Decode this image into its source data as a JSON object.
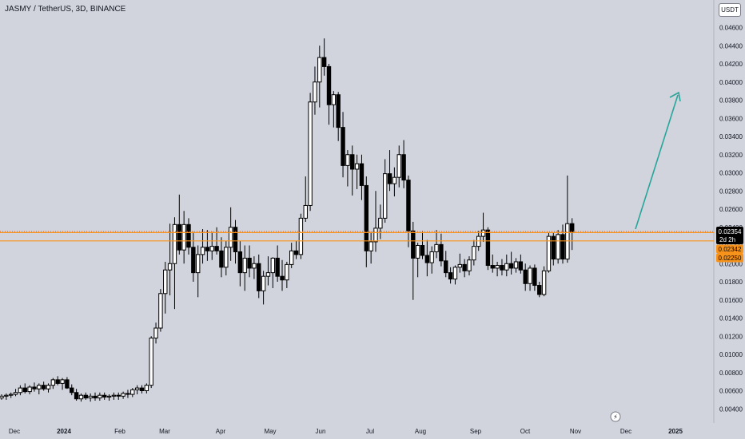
{
  "title": "JASMY / TetherUS, 3D, BINANCE",
  "currency": "USDT",
  "colors": {
    "background": "#d1d4dc",
    "candle": "#000000",
    "level_line": "#f7931a",
    "arrow": "#26a69a",
    "text": "#131722"
  },
  "icons": {
    "lightning": "lightning-icon"
  },
  "price_tags": {
    "last": {
      "value": 0.02354,
      "label": "0.02354",
      "countdown": "2d 2h"
    },
    "upper_level": {
      "value": 0.02342,
      "label": "0.02342"
    },
    "lower_level": {
      "value": 0.0225,
      "label": "0.02250"
    }
  },
  "chart_data": {
    "type": "candlestick",
    "title": "JASMY / TetherUS, 3D, BINANCE",
    "ylim": [
      0.0035,
      0.0475
    ],
    "y_ticks": [
      "0.04600",
      "0.04400",
      "0.04200",
      "0.04000",
      "0.03800",
      "0.03600",
      "0.03400",
      "0.03200",
      "0.03000",
      "0.02800",
      "0.02600",
      "0.02400",
      "0.02200",
      "0.02000",
      "0.01800",
      "0.01600",
      "0.01400",
      "0.01200",
      "0.01000",
      "0.00800",
      "0.00600",
      "0.00400"
    ],
    "x_ticks": [
      {
        "label": "Dec",
        "bold": false
      },
      {
        "label": "2024",
        "bold": true
      },
      {
        "label": "Feb",
        "bold": false
      },
      {
        "label": "Mar",
        "bold": false
      },
      {
        "label": "Apr",
        "bold": false
      },
      {
        "label": "May",
        "bold": false
      },
      {
        "label": "Jun",
        "bold": false
      },
      {
        "label": "Jul",
        "bold": false
      },
      {
        "label": "Aug",
        "bold": false
      },
      {
        "label": "Sep",
        "bold": false
      },
      {
        "label": "Oct",
        "bold": false
      },
      {
        "label": "Nov",
        "bold": false
      },
      {
        "label": "Dec",
        "bold": false
      },
      {
        "label": "2025",
        "bold": true
      }
    ],
    "levels": [
      0.02342,
      0.0225
    ],
    "ohlc": [
      [
        0.0052,
        0.0056,
        0.005,
        0.0054
      ],
      [
        0.0054,
        0.0057,
        0.005,
        0.0055
      ],
      [
        0.0055,
        0.0058,
        0.0052,
        0.0056
      ],
      [
        0.0056,
        0.0062,
        0.0054,
        0.0058
      ],
      [
        0.0058,
        0.0066,
        0.0055,
        0.0063
      ],
      [
        0.0063,
        0.0068,
        0.0057,
        0.0059
      ],
      [
        0.0059,
        0.0066,
        0.0056,
        0.0064
      ],
      [
        0.0064,
        0.0069,
        0.0059,
        0.0062
      ],
      [
        0.0062,
        0.0068,
        0.0056,
        0.0066
      ],
      [
        0.0066,
        0.007,
        0.006,
        0.0062
      ],
      [
        0.0062,
        0.0068,
        0.0058,
        0.0066
      ],
      [
        0.0066,
        0.0074,
        0.0062,
        0.0072
      ],
      [
        0.0072,
        0.0076,
        0.0066,
        0.0068
      ],
      [
        0.0068,
        0.0074,
        0.0061,
        0.0072
      ],
      [
        0.0072,
        0.0075,
        0.0062,
        0.0063
      ],
      [
        0.0063,
        0.0067,
        0.0055,
        0.0058
      ],
      [
        0.0058,
        0.0062,
        0.0049,
        0.0051
      ],
      [
        0.0051,
        0.0057,
        0.0048,
        0.0055
      ],
      [
        0.0055,
        0.0058,
        0.005,
        0.0052
      ],
      [
        0.0052,
        0.0057,
        0.0048,
        0.0054
      ],
      [
        0.0054,
        0.0058,
        0.0049,
        0.0052
      ],
      [
        0.0052,
        0.0058,
        0.0049,
        0.0055
      ],
      [
        0.0055,
        0.0058,
        0.005,
        0.0053
      ],
      [
        0.0053,
        0.0056,
        0.0049,
        0.0054
      ],
      [
        0.0054,
        0.0058,
        0.005,
        0.0055
      ],
      [
        0.0055,
        0.0058,
        0.005,
        0.0054
      ],
      [
        0.0054,
        0.0059,
        0.0051,
        0.0057
      ],
      [
        0.0057,
        0.0061,
        0.0052,
        0.0056
      ],
      [
        0.0056,
        0.0063,
        0.0053,
        0.0061
      ],
      [
        0.0061,
        0.0066,
        0.0056,
        0.0063
      ],
      [
        0.0063,
        0.0066,
        0.0057,
        0.006
      ],
      [
        0.006,
        0.0068,
        0.0057,
        0.0066
      ],
      [
        0.0066,
        0.012,
        0.0063,
        0.0118
      ],
      [
        0.0118,
        0.0135,
        0.0112,
        0.0129
      ],
      [
        0.0129,
        0.0172,
        0.0125,
        0.0167
      ],
      [
        0.0167,
        0.0202,
        0.0145,
        0.0193
      ],
      [
        0.0193,
        0.0244,
        0.0165,
        0.02
      ],
      [
        0.02,
        0.0251,
        0.015,
        0.0243
      ],
      [
        0.0243,
        0.0276,
        0.021,
        0.0215
      ],
      [
        0.0215,
        0.0258,
        0.02,
        0.0243
      ],
      [
        0.0243,
        0.025,
        0.021,
        0.0218
      ],
      [
        0.0218,
        0.0235,
        0.018,
        0.019
      ],
      [
        0.019,
        0.022,
        0.0163,
        0.021
      ],
      [
        0.021,
        0.0238,
        0.02,
        0.0218
      ],
      [
        0.0218,
        0.0237,
        0.0203,
        0.0214
      ],
      [
        0.0214,
        0.0235,
        0.0204,
        0.0219
      ],
      [
        0.0219,
        0.024,
        0.021,
        0.0214
      ],
      [
        0.0214,
        0.0229,
        0.0185,
        0.0196
      ],
      [
        0.0196,
        0.0225,
        0.0187,
        0.0218
      ],
      [
        0.0218,
        0.0262,
        0.0203,
        0.024
      ],
      [
        0.024,
        0.0248,
        0.02,
        0.0213
      ],
      [
        0.0213,
        0.0225,
        0.0175,
        0.019
      ],
      [
        0.019,
        0.022,
        0.017,
        0.0206
      ],
      [
        0.0206,
        0.022,
        0.0185,
        0.0195
      ],
      [
        0.0195,
        0.0208,
        0.0183,
        0.02
      ],
      [
        0.02,
        0.021,
        0.0162,
        0.017
      ],
      [
        0.017,
        0.0192,
        0.0155,
        0.0186
      ],
      [
        0.0186,
        0.0208,
        0.0176,
        0.019
      ],
      [
        0.019,
        0.0207,
        0.0173,
        0.0206
      ],
      [
        0.0206,
        0.022,
        0.018,
        0.0186
      ],
      [
        0.0186,
        0.0204,
        0.017,
        0.0182
      ],
      [
        0.0182,
        0.0202,
        0.0173,
        0.0199
      ],
      [
        0.0199,
        0.0223,
        0.0195,
        0.0214
      ],
      [
        0.0214,
        0.0225,
        0.0205,
        0.021
      ],
      [
        0.021,
        0.0255,
        0.0205,
        0.025
      ],
      [
        0.025,
        0.0296,
        0.0246,
        0.0264
      ],
      [
        0.0264,
        0.0388,
        0.0258,
        0.0378
      ],
      [
        0.0378,
        0.0417,
        0.0364,
        0.04
      ],
      [
        0.04,
        0.044,
        0.0372,
        0.0427
      ],
      [
        0.0427,
        0.0448,
        0.0407,
        0.0417
      ],
      [
        0.0417,
        0.042,
        0.0353,
        0.0375
      ],
      [
        0.0375,
        0.039,
        0.035,
        0.0386
      ],
      [
        0.0386,
        0.0389,
        0.0335,
        0.035
      ],
      [
        0.035,
        0.0367,
        0.0295,
        0.0308
      ],
      [
        0.0308,
        0.0325,
        0.0285,
        0.032
      ],
      [
        0.032,
        0.033,
        0.0275,
        0.0304
      ],
      [
        0.0304,
        0.032,
        0.0282,
        0.031
      ],
      [
        0.031,
        0.032,
        0.027,
        0.0286
      ],
      [
        0.0286,
        0.0296,
        0.0196,
        0.0214
      ],
      [
        0.0214,
        0.0235,
        0.02,
        0.0224
      ],
      [
        0.0224,
        0.028,
        0.0213,
        0.0239
      ],
      [
        0.0239,
        0.0265,
        0.0227,
        0.025
      ],
      [
        0.025,
        0.0315,
        0.0245,
        0.0299
      ],
      [
        0.0299,
        0.0325,
        0.028,
        0.0288
      ],
      [
        0.0288,
        0.0306,
        0.0274,
        0.0295
      ],
      [
        0.0295,
        0.033,
        0.0284,
        0.032
      ],
      [
        0.032,
        0.0336,
        0.0283,
        0.0292
      ],
      [
        0.0292,
        0.0297,
        0.0218,
        0.0236
      ],
      [
        0.0236,
        0.0246,
        0.016,
        0.0206
      ],
      [
        0.0206,
        0.0223,
        0.0185,
        0.022
      ],
      [
        0.022,
        0.0236,
        0.0205,
        0.0209
      ],
      [
        0.0209,
        0.0226,
        0.0186,
        0.0201
      ],
      [
        0.0201,
        0.0219,
        0.0189,
        0.0213
      ],
      [
        0.0213,
        0.0237,
        0.0206,
        0.0221
      ],
      [
        0.0221,
        0.0233,
        0.0197,
        0.0203
      ],
      [
        0.0203,
        0.0214,
        0.0185,
        0.019
      ],
      [
        0.019,
        0.0196,
        0.0178,
        0.0183
      ],
      [
        0.0183,
        0.0198,
        0.0177,
        0.0196
      ],
      [
        0.0196,
        0.0211,
        0.019,
        0.0199
      ],
      [
        0.0199,
        0.0205,
        0.0185,
        0.0192
      ],
      [
        0.0192,
        0.0208,
        0.0187,
        0.0204
      ],
      [
        0.0204,
        0.0226,
        0.0198,
        0.0219
      ],
      [
        0.0219,
        0.0236,
        0.0214,
        0.023
      ],
      [
        0.023,
        0.0256,
        0.0224,
        0.0237
      ],
      [
        0.0237,
        0.024,
        0.0193,
        0.0198
      ],
      [
        0.0198,
        0.021,
        0.019,
        0.0195
      ],
      [
        0.0195,
        0.0202,
        0.0186,
        0.0198
      ],
      [
        0.0198,
        0.0205,
        0.0187,
        0.0193
      ],
      [
        0.0193,
        0.021,
        0.0186,
        0.02
      ],
      [
        0.02,
        0.0213,
        0.0188,
        0.0195
      ],
      [
        0.0195,
        0.0206,
        0.019,
        0.0202
      ],
      [
        0.0202,
        0.021,
        0.0189,
        0.0193
      ],
      [
        0.0193,
        0.02,
        0.017,
        0.0178
      ],
      [
        0.0178,
        0.0198,
        0.017,
        0.0195
      ],
      [
        0.0195,
        0.0199,
        0.017,
        0.0176
      ],
      [
        0.0176,
        0.018,
        0.0163,
        0.0166
      ],
      [
        0.0166,
        0.0197,
        0.0164,
        0.0192
      ],
      [
        0.0192,
        0.0234,
        0.019,
        0.023
      ],
      [
        0.023,
        0.0234,
        0.0198,
        0.0205
      ],
      [
        0.0205,
        0.0237,
        0.02,
        0.0232
      ],
      [
        0.0232,
        0.0243,
        0.02,
        0.0205
      ],
      [
        0.0205,
        0.0297,
        0.0201,
        0.0244
      ],
      [
        0.0244,
        0.025,
        0.0215,
        0.0235
      ]
    ]
  }
}
